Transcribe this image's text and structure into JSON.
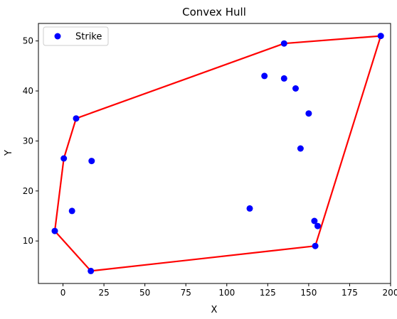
{
  "chart_data": {
    "type": "scatter",
    "title": "Convex Hull",
    "xlabel": "X",
    "ylabel": "Y",
    "xlim": [
      -15,
      200
    ],
    "ylim": [
      1.5,
      53.5
    ],
    "xticks": [
      0,
      25,
      50,
      75,
      100,
      125,
      150,
      175,
      200
    ],
    "yticks": [
      10,
      20,
      30,
      40,
      50
    ],
    "grid": false,
    "legend_position": "top-left",
    "series": [
      {
        "name": "Strike",
        "type": "scatter",
        "color": "#0000ff",
        "points": [
          [
            194,
            51
          ],
          [
            135,
            49.5
          ],
          [
            123,
            43
          ],
          [
            135,
            42.5
          ],
          [
            142,
            40.5
          ],
          [
            150,
            35.5
          ],
          [
            145,
            28.5
          ],
          [
            8,
            34.5
          ],
          [
            0.5,
            26.5
          ],
          [
            17.5,
            26
          ],
          [
            5.5,
            16
          ],
          [
            -5,
            12
          ],
          [
            114,
            16.5
          ],
          [
            153.5,
            14
          ],
          [
            155.5,
            13
          ],
          [
            154,
            9
          ],
          [
            17,
            4
          ]
        ]
      },
      {
        "type": "line",
        "color": "#ff0000",
        "points": [
          [
            194,
            51
          ],
          [
            135,
            49.5
          ],
          [
            8,
            34.5
          ],
          [
            0.5,
            26.5
          ],
          [
            -5,
            12
          ],
          [
            17,
            4
          ],
          [
            154,
            9
          ],
          [
            194,
            51
          ]
        ]
      }
    ]
  }
}
